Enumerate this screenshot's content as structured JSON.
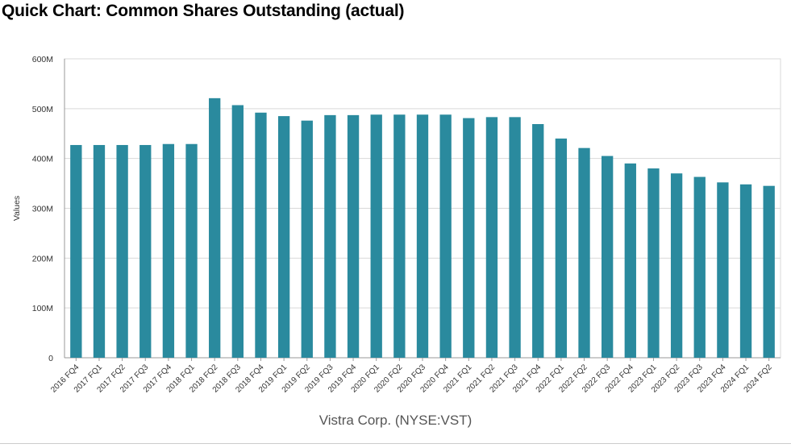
{
  "page_title": "Quick Chart: Common Shares Outstanding (actual)",
  "colors": {
    "bar": "#2a8a9e",
    "grid": "#d9d9d9",
    "axis": "#999999"
  },
  "chart_data": {
    "type": "bar",
    "title": "Quick Chart: Common Shares Outstanding (actual)",
    "xlabel": "Vistra Corp. (NYSE:VST)",
    "ylabel": "Values",
    "ylim": [
      0,
      600000000
    ],
    "yticks": [
      {
        "value": 0,
        "label": "0"
      },
      {
        "value": 100000000,
        "label": "100M"
      },
      {
        "value": 200000000,
        "label": "200M"
      },
      {
        "value": 300000000,
        "label": "300M"
      },
      {
        "value": 400000000,
        "label": "400M"
      },
      {
        "value": 500000000,
        "label": "500M"
      },
      {
        "value": 600000000,
        "label": "600M"
      }
    ],
    "grid": true,
    "categories": [
      "2016 FQ4",
      "2017 FQ1",
      "2017 FQ2",
      "2017 FQ3",
      "2017 FQ4",
      "2018 FQ1",
      "2018 FQ2",
      "2018 FQ3",
      "2018 FQ4",
      "2019 FQ1",
      "2019 FQ2",
      "2019 FQ3",
      "2019 FQ4",
      "2020 FQ1",
      "2020 FQ2",
      "2020 FQ3",
      "2020 FQ4",
      "2021 FQ1",
      "2021 FQ2",
      "2021 FQ3",
      "2021 FQ4",
      "2022 FQ1",
      "2022 FQ2",
      "2022 FQ3",
      "2022 FQ4",
      "2023 FQ1",
      "2023 FQ2",
      "2023 FQ3",
      "2023 FQ4",
      "2024 FQ1",
      "2024 FQ2"
    ],
    "values": [
      427000000,
      427000000,
      427000000,
      427000000,
      429000000,
      429000000,
      521000000,
      507000000,
      492000000,
      485000000,
      476000000,
      487000000,
      487000000,
      488000000,
      488000000,
      488000000,
      488000000,
      481000000,
      483000000,
      483000000,
      469000000,
      440000000,
      421000000,
      405000000,
      390000000,
      380000000,
      370000000,
      363000000,
      352000000,
      348000000,
      345000000
    ]
  }
}
